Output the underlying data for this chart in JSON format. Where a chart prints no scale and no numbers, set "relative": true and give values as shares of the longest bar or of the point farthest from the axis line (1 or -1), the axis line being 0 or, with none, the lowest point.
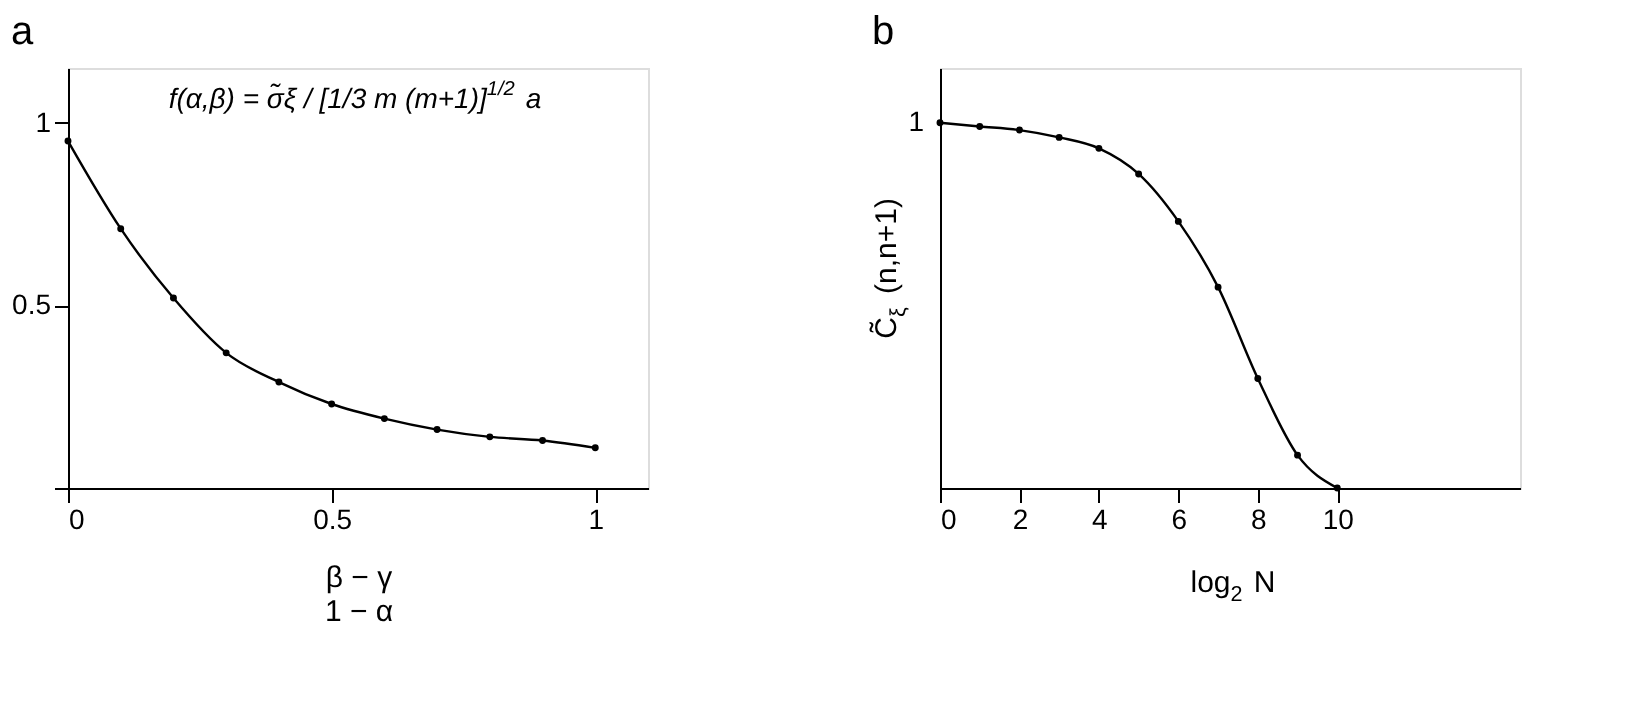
{
  "chart_data": [
    {
      "type": "line",
      "title": "a",
      "xlabel": "β − γ\n1 − α",
      "marker": "circle",
      "line_style": "solid",
      "grid": false,
      "annotations": [
        "f(α,β) = σ̃ξ / [1/3 m (m+1)]$^{1/2}$ a"
      ],
      "x": [
        0,
        0.1,
        0.2,
        0.3,
        0.4,
        0.5,
        0.6,
        0.7,
        0.8,
        0.9,
        1
      ],
      "series": [
        {
          "color": "#000000",
          "values": [
            0.95,
            0.71,
            0.52,
            0.37,
            0.29,
            0.23,
            0.19,
            0.16,
            0.14,
            0.13,
            0.11
          ]
        }
      ],
      "xlim": [
        0,
        1.1
      ],
      "ylim": [
        0,
        1.15
      ],
      "xticks": [
        0,
        0.5,
        1
      ],
      "yticks": [
        {
          "value": 0,
          "label": null
        },
        0.5,
        1
      ]
    },
    {
      "type": "line",
      "title": "b",
      "xlabel": "log$_{2}$ N",
      "ylabel": "C̃$_{ξ}$ (n,n+1)",
      "marker": "circle",
      "line_style": "solid",
      "grid": false,
      "relative": true,
      "annotations": [
        "1"
      ],
      "x": [
        0,
        1,
        2,
        3,
        4,
        5,
        6,
        7,
        8,
        9,
        10
      ],
      "series": [
        {
          "color": "#000000",
          "values": [
            1.0,
            0.99,
            0.98,
            0.96,
            0.93,
            0.86,
            0.73,
            0.55,
            0.3,
            0.09,
            0
          ]
        }
      ],
      "xlim": [
        0,
        14.6
      ],
      "xticks": [
        0,
        2,
        4,
        6,
        8,
        10
      ]
    }
  ]
}
